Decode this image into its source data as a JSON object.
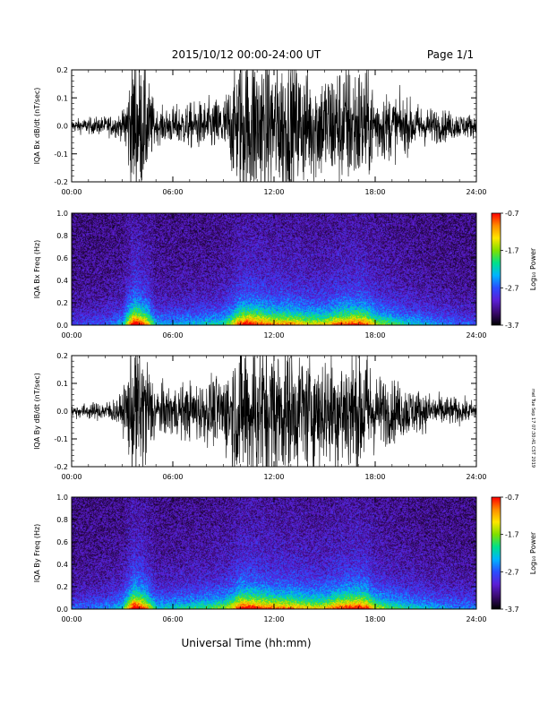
{
  "header": {
    "title": "2015/10/12  00:00-24:00 UT",
    "page": "Page 1/1"
  },
  "footer": {
    "xlabel": "Universal Time (hh:mm)",
    "side_note": "mel Tue Sep 17 07:30:41 CST 2019"
  },
  "colorbar": {
    "ticks": [
      "-0.7",
      "-1.7",
      "-2.7",
      "-3.7"
    ],
    "tick_values": [
      -0.7,
      -1.7,
      -2.7,
      -3.7
    ],
    "range": [
      -3.7,
      -0.7
    ],
    "label": "Log₁₀ Power",
    "colors": [
      "#000000",
      "#3a0a6e",
      "#5b1fd6",
      "#2a4dff",
      "#00b4ff",
      "#00e08a",
      "#7fe000",
      "#ffe600",
      "#ff8c00",
      "#ff0000"
    ]
  },
  "chart_data": [
    {
      "type": "line",
      "panel": "top-waveform",
      "ylabel": "IQA Bx dB/dt (nT/sec)",
      "xlim": [
        0,
        24
      ],
      "ylim": [
        -0.2,
        0.2
      ],
      "xticks": [
        "00:00",
        "06:00",
        "12:00",
        "18:00",
        "24:00"
      ],
      "yticks": [
        "0.2",
        "0.1",
        "0.0",
        "-0.1",
        "-0.2"
      ],
      "ytick_values": [
        0.2,
        0.1,
        0.0,
        -0.1,
        -0.2
      ],
      "series": [
        {
          "x": [
            0,
            1,
            2,
            3,
            3.7,
            4.0,
            4.4,
            5,
            6,
            7,
            8,
            9,
            9.5,
            10,
            10.5,
            11,
            12,
            13,
            14,
            15,
            16,
            17,
            17.5,
            18,
            19,
            20,
            21,
            22,
            23,
            24
          ],
          "amplitude": [
            0.02,
            0.025,
            0.03,
            0.04,
            0.25,
            0.22,
            0.18,
            0.05,
            0.06,
            0.07,
            0.08,
            0.09,
            0.15,
            0.25,
            0.25,
            0.25,
            0.22,
            0.22,
            0.18,
            0.18,
            0.2,
            0.2,
            0.18,
            0.12,
            0.1,
            0.08,
            0.06,
            0.05,
            0.04,
            0.035
          ]
        }
      ]
    },
    {
      "type": "heatmap",
      "panel": "top-spectrogram",
      "ylabel": "IQA Bx Freq (Hz)",
      "xlim": [
        0,
        24
      ],
      "ylim": [
        0,
        1.0
      ],
      "xticks": [
        "00:00",
        "06:00",
        "12:00",
        "18:00",
        "24:00"
      ],
      "yticks": [
        "1.0",
        "0.8",
        "0.6",
        "0.4",
        "0.2",
        "0.0"
      ],
      "ytick_values": [
        1.0,
        0.8,
        0.6,
        0.4,
        0.2,
        0.0
      ],
      "activity": {
        "x": [
          0,
          1,
          2,
          3,
          3.7,
          4.0,
          4.4,
          5,
          6,
          7,
          8,
          9,
          9.5,
          10,
          10.5,
          11,
          12,
          13,
          14,
          15,
          16,
          17,
          17.5,
          18,
          19,
          20,
          21,
          22,
          23,
          24
        ],
        "level": [
          0.15,
          0.18,
          0.2,
          0.3,
          0.95,
          0.85,
          0.7,
          0.3,
          0.3,
          0.32,
          0.35,
          0.4,
          0.55,
          0.8,
          0.85,
          0.8,
          0.7,
          0.7,
          0.6,
          0.6,
          0.75,
          0.8,
          0.75,
          0.55,
          0.45,
          0.35,
          0.3,
          0.25,
          0.2,
          0.2
        ]
      }
    },
    {
      "type": "line",
      "panel": "bottom-waveform",
      "ylabel": "IQA By dB/dt (nT/sec)",
      "xlim": [
        0,
        24
      ],
      "ylim": [
        -0.2,
        0.2
      ],
      "xticks": [
        "00:00",
        "06:00",
        "12:00",
        "18:00",
        "24:00"
      ],
      "yticks": [
        "0.2",
        "0.1",
        "0.0",
        "-0.1",
        "-0.2"
      ],
      "ytick_values": [
        0.2,
        0.1,
        0.0,
        -0.1,
        -0.2
      ],
      "series": [
        {
          "x": [
            0,
            1,
            2,
            3,
            3.7,
            4.0,
            4.4,
            5,
            6,
            7,
            8,
            9,
            9.5,
            10,
            10.5,
            11,
            12,
            13,
            14,
            15,
            16,
            17,
            17.5,
            18,
            19,
            20,
            21,
            22,
            23,
            24
          ],
          "amplitude": [
            0.02,
            0.025,
            0.03,
            0.05,
            0.25,
            0.22,
            0.2,
            0.08,
            0.08,
            0.09,
            0.1,
            0.12,
            0.18,
            0.25,
            0.25,
            0.25,
            0.22,
            0.2,
            0.18,
            0.18,
            0.2,
            0.22,
            0.2,
            0.12,
            0.1,
            0.08,
            0.06,
            0.05,
            0.04,
            0.03
          ]
        }
      ]
    },
    {
      "type": "heatmap",
      "panel": "bottom-spectrogram",
      "ylabel": "IQA By Freq (Hz)",
      "xlim": [
        0,
        24
      ],
      "ylim": [
        0,
        1.0
      ],
      "xticks": [
        "00:00",
        "06:00",
        "12:00",
        "18:00",
        "24:00"
      ],
      "yticks": [
        "1.0",
        "0.8",
        "0.6",
        "0.4",
        "0.2",
        "0.0"
      ],
      "ytick_values": [
        1.0,
        0.8,
        0.6,
        0.4,
        0.2,
        0.0
      ],
      "activity": {
        "x": [
          0,
          1,
          2,
          3,
          3.7,
          4.0,
          4.4,
          5,
          6,
          7,
          8,
          9,
          9.5,
          10,
          10.5,
          11,
          12,
          13,
          14,
          15,
          16,
          17,
          17.5,
          18,
          19,
          20,
          21,
          22,
          23,
          24
        ],
        "level": [
          0.2,
          0.22,
          0.25,
          0.35,
          0.95,
          0.85,
          0.7,
          0.35,
          0.35,
          0.4,
          0.45,
          0.5,
          0.6,
          0.85,
          0.85,
          0.8,
          0.72,
          0.7,
          0.62,
          0.62,
          0.78,
          0.85,
          0.78,
          0.55,
          0.45,
          0.38,
          0.32,
          0.28,
          0.25,
          0.25
        ]
      }
    }
  ]
}
